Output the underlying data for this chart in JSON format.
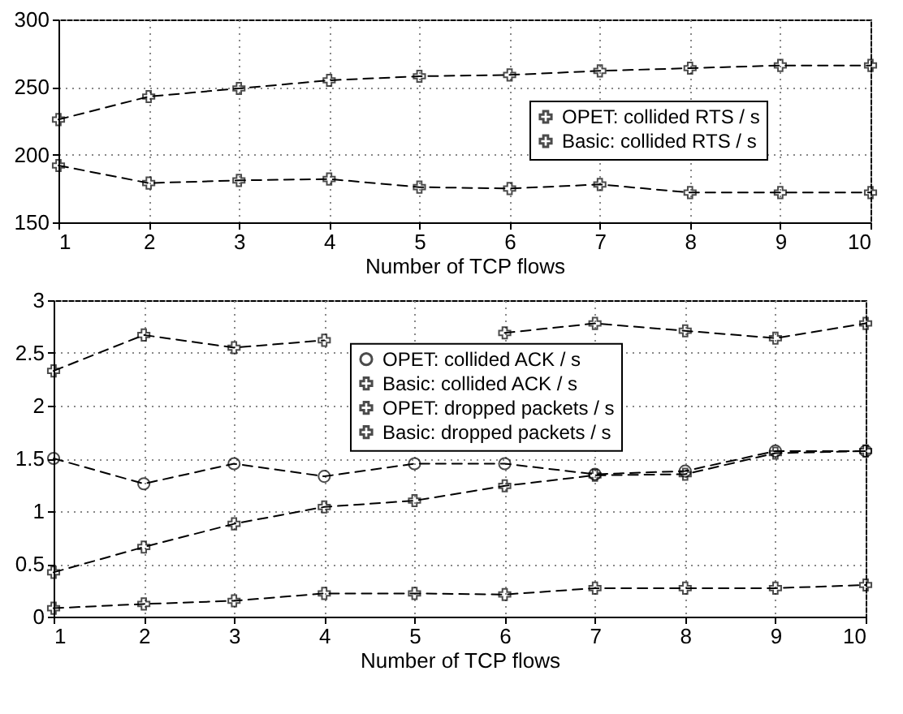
{
  "chart_data": [
    {
      "type": "line",
      "xlabel": "Number of TCP flows",
      "x": [
        1,
        2,
        3,
        4,
        5,
        6,
        7,
        8,
        9,
        10
      ],
      "xlim": [
        1,
        10
      ],
      "xticks": [
        1,
        2,
        3,
        4,
        5,
        6,
        7,
        8,
        9,
        10
      ],
      "ylim": [
        150,
        300
      ],
      "yticks": [
        150,
        200,
        250,
        300
      ],
      "grid": true,
      "legend": "right",
      "line_style": "dashed",
      "series": [
        {
          "name": "OPET: collided RTS / s",
          "color": "#000000",
          "marker": "cross",
          "values": [
            192,
            179,
            181,
            182,
            176,
            175,
            178,
            172,
            172,
            172
          ]
        },
        {
          "name": "Basic: collided RTS / s",
          "color": "#000000",
          "marker": "cross",
          "values": [
            226,
            243,
            249,
            255,
            258,
            259,
            262,
            264,
            266,
            266
          ]
        }
      ]
    },
    {
      "type": "line",
      "xlabel": "Number of TCP flows",
      "x": [
        1,
        2,
        3,
        4,
        5,
        6,
        7,
        8,
        9,
        10
      ],
      "xlim": [
        1,
        10
      ],
      "xticks": [
        1,
        2,
        3,
        4,
        5,
        6,
        7,
        8,
        9,
        10
      ],
      "ylim": [
        0,
        3
      ],
      "yticks": [
        0,
        0.5,
        1,
        1.5,
        2,
        2.5,
        3
      ],
      "grid": true,
      "legend": "top",
      "line_style": "dashed",
      "series": [
        {
          "name": "OPET: collided ACK / s",
          "color": "#000000",
          "marker": "circle",
          "values": [
            1.5,
            1.26,
            1.45,
            1.33,
            1.45,
            1.45,
            1.35,
            1.38,
            1.57,
            1.57
          ]
        },
        {
          "name": "Basic: collided ACK / s",
          "color": "#000000",
          "marker": "cross",
          "values": [
            2.33,
            2.67,
            2.55,
            2.62,
            null,
            2.69,
            2.78,
            2.71,
            2.64,
            2.78
          ]
        },
        {
          "name": "OPET: dropped packets / s",
          "color": "#000000",
          "marker": "cross",
          "values": [
            0.08,
            0.12,
            0.15,
            0.22,
            0.22,
            0.21,
            0.27,
            0.27,
            0.27,
            0.3
          ]
        },
        {
          "name": "Basic: dropped packets / s",
          "color": "#000000",
          "marker": "cross",
          "values": [
            0.42,
            0.66,
            0.88,
            1.04,
            1.1,
            1.24,
            1.34,
            1.35,
            1.55,
            1.57
          ]
        }
      ]
    }
  ]
}
